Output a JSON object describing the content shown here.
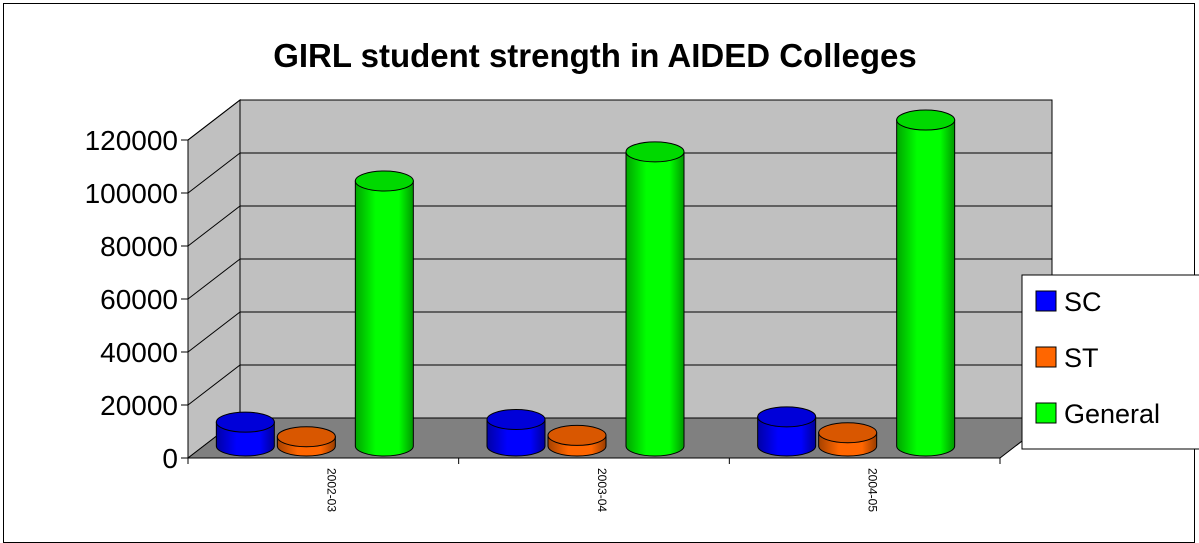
{
  "chart_data": {
    "type": "bar",
    "title": "GIRL student strength in AIDED Colleges",
    "categories": [
      "2002-03",
      "2003-04",
      "2004-05"
    ],
    "series": [
      {
        "name": "SC",
        "values": [
          9000,
          10000,
          11000
        ],
        "color": "#0000ff"
      },
      {
        "name": "ST",
        "values": [
          3500,
          4000,
          5000
        ],
        "color": "#ff6600"
      },
      {
        "name": "General",
        "values": [
          100000,
          111000,
          123000
        ],
        "color": "#00ff00"
      }
    ],
    "ylim": [
      0,
      120000
    ],
    "yticks": [
      "0",
      "20000",
      "40000",
      "60000",
      "80000",
      "100000",
      "120000"
    ],
    "xlabel": "",
    "ylabel": "",
    "grid": true,
    "legend": "right",
    "colors": {
      "wall": "#c0c0c0",
      "floor": "#808080"
    }
  }
}
